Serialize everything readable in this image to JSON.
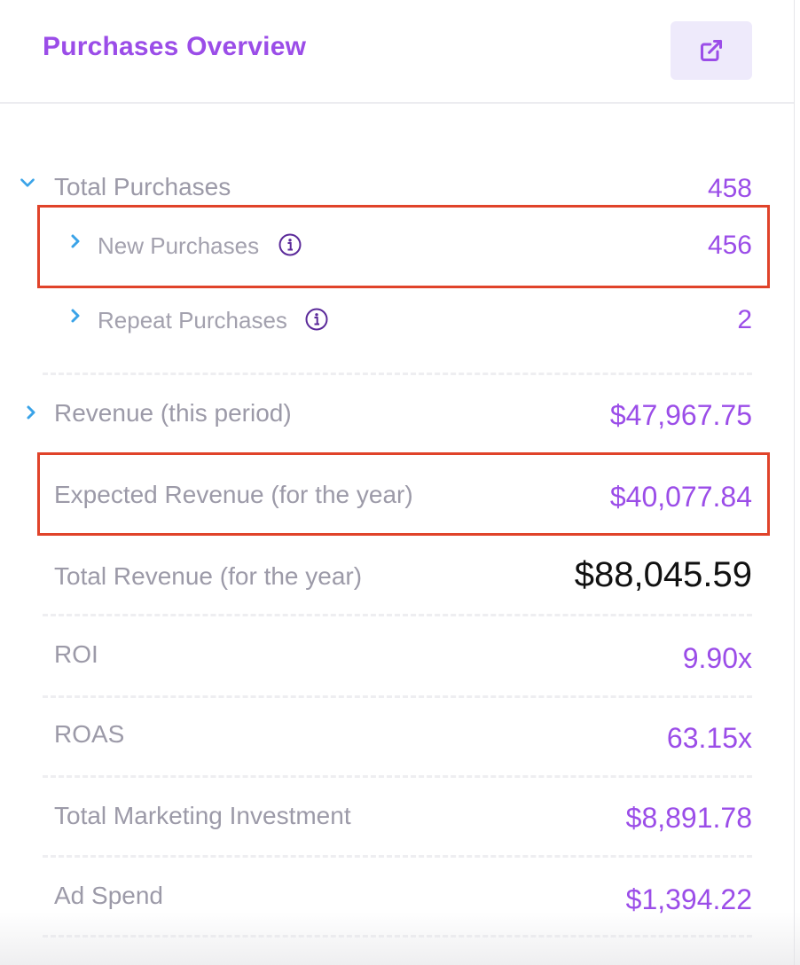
{
  "header": {
    "title": "Purchases Overview",
    "open_icon": "external-link-icon"
  },
  "metrics": {
    "total_purchases": {
      "label": "Total Purchases",
      "value": "458",
      "expanded": true
    },
    "new_purchases": {
      "label": "New Purchases",
      "value": "456",
      "info_icon": "info-icon"
    },
    "repeat_purchases": {
      "label": "Repeat Purchases",
      "value": "2",
      "info_icon": "info-icon"
    },
    "revenue_period": {
      "label": "Revenue (this period)",
      "value": "$47,967.75",
      "expanded": false
    },
    "expected_revenue": {
      "label": "Expected Revenue (for the year)",
      "value": "$40,077.84"
    },
    "total_revenue": {
      "label": "Total Revenue (for the year)",
      "value": "$88,045.59"
    },
    "roi": {
      "label": "ROI",
      "value": "9.90x"
    },
    "roas": {
      "label": "ROAS",
      "value": "63.15x"
    },
    "marketing_investment": {
      "label": "Total Marketing Investment",
      "value": "$8,891.78"
    },
    "ad_spend": {
      "label": "Ad Spend",
      "value": "$1,394.22"
    }
  },
  "colors": {
    "accent": "#9b4de8",
    "label": "#9c9aa8",
    "chevron": "#3aa3e8",
    "highlight": "#e0432a",
    "button_bg": "#eeeafb"
  }
}
